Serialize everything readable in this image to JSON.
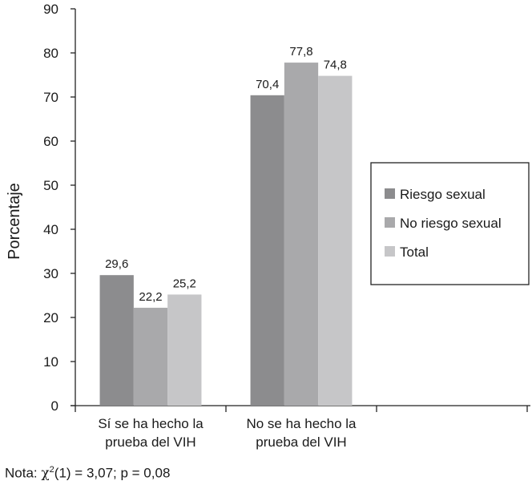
{
  "chart_data": {
    "type": "bar",
    "ylabel": "Porcentaje",
    "ylim": [
      0,
      90
    ],
    "yticks": [
      "0",
      "10",
      "20",
      "30",
      "40",
      "50",
      "60",
      "70",
      "80",
      "90"
    ],
    "categories": [
      [
        "Sí se ha hecho la",
        "prueba del VIH"
      ],
      [
        "No se ha hecho la",
        "prueba del VIH"
      ]
    ],
    "series": [
      {
        "name": "Riesgo sexual",
        "values": [
          29.6,
          70.4
        ],
        "labels": [
          "29,6",
          "70,4"
        ],
        "color": "#8c8c8e"
      },
      {
        "name": "No riesgo sexual",
        "values": [
          22.2,
          77.8
        ],
        "labels": [
          "22,2",
          "77,8"
        ],
        "color": "#a9a9ab"
      },
      {
        "name": "Total",
        "values": [
          25.2,
          74.8
        ],
        "labels": [
          "25,2",
          "74,8"
        ],
        "color": "#c6c6c8"
      }
    ],
    "legend_position": "right",
    "grid": false
  },
  "note": {
    "prefix": "Nota: ",
    "symbol": "χ",
    "sup": "2",
    "rest": "(1) = 3,07; p = 0,08"
  }
}
